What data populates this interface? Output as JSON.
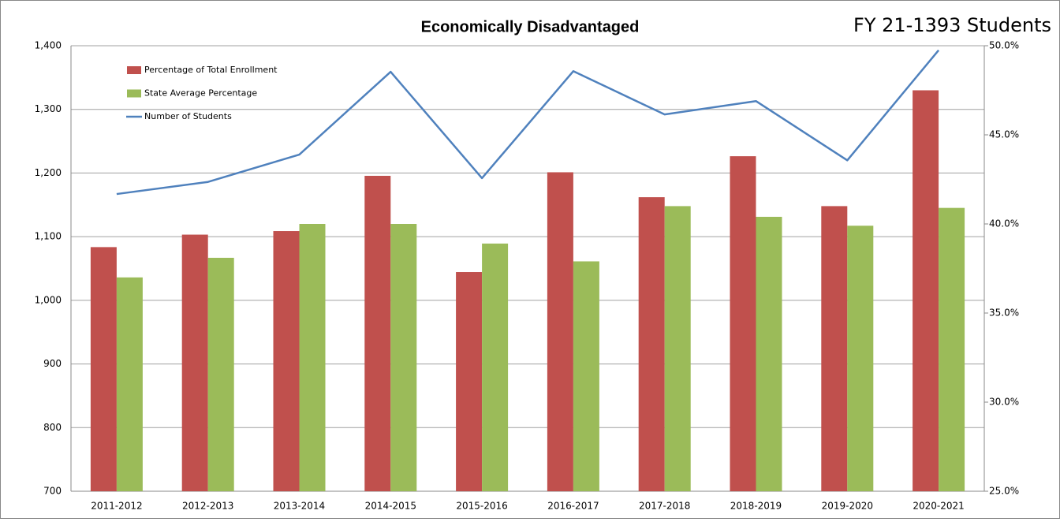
{
  "chart_data": {
    "type": "combo",
    "title": "Economically Disadvantaged",
    "subtitle": "FY 21-1393 Students",
    "categories": [
      "2011-2012",
      "2012-2013",
      "2013-2014",
      "2014-2015",
      "2015-2016",
      "2016-2017",
      "2017-2018",
      "2018-2019",
      "2019-2020",
      "2020-2021"
    ],
    "series": [
      {
        "name": "Percentage of Total Enrollment",
        "type": "bar",
        "axis": "y2",
        "color": "#c0504d",
        "values": [
          38.7,
          39.4,
          39.6,
          42.7,
          37.3,
          42.9,
          41.5,
          43.8,
          41.0,
          47.5
        ]
      },
      {
        "name": "State Average Percentage",
        "type": "bar",
        "axis": "y2",
        "color": "#9bbb59",
        "values": [
          37.0,
          38.1,
          40.0,
          40.0,
          38.9,
          37.9,
          41.0,
          40.4,
          39.9,
          40.9
        ]
      },
      {
        "name": "Number of Students",
        "type": "line",
        "color": "#4f81bd",
        "values": [
          1167,
          1186,
          1229,
          1359,
          1192,
          1360,
          1292,
          1313,
          1220,
          1393
        ]
      }
    ],
    "ylim": [
      700,
      1400
    ],
    "yticks": [
      700,
      800,
      900,
      {
        "value": 1000,
        "label": "1,000"
      },
      {
        "value": 1100,
        "label": "1,100"
      },
      {
        "value": 1200,
        "label": "1,200"
      },
      {
        "value": 1300,
        "label": "1,300"
      },
      {
        "value": 1400,
        "label": "1,400"
      }
    ],
    "y2lim": [
      25,
      50
    ],
    "y2ticks": [
      {
        "value": 25,
        "label": "25.0%"
      },
      {
        "value": 30,
        "label": "30.0%"
      },
      {
        "value": 35,
        "label": "35.0%"
      },
      {
        "value": 40,
        "label": "40.0%"
      },
      {
        "value": 45,
        "label": "45.0%"
      },
      {
        "value": 50,
        "label": "50.0%"
      }
    ],
    "grid": true,
    "legend": "top-left"
  }
}
